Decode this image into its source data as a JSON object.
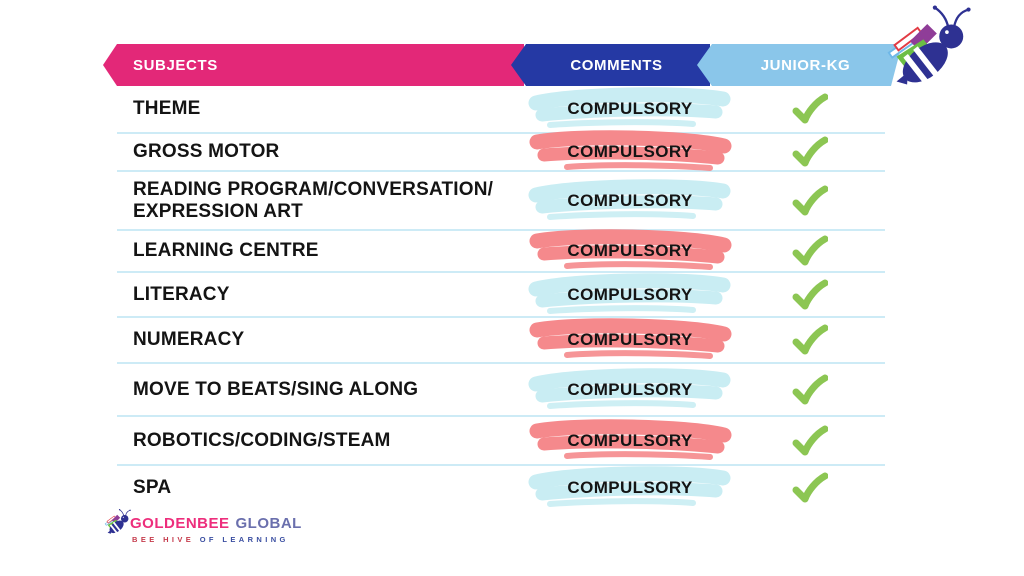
{
  "header": {
    "columns": [
      {
        "label": "SUBJECTS",
        "color": "#E32878"
      },
      {
        "label": "COMMENTS",
        "color": "#2539A4"
      },
      {
        "label": "JUNIOR-KG",
        "color": "#8AC6EA"
      }
    ]
  },
  "rows": [
    {
      "subject": "THEME",
      "comment": "COMPULSORY",
      "stroke": "blue",
      "checked": true
    },
    {
      "subject": "GROSS MOTOR",
      "comment": "COMPULSORY",
      "stroke": "red",
      "checked": true
    },
    {
      "subject": "READING PROGRAM/CONVERSATION/ EXPRESSION ART",
      "comment": "COMPULSORY",
      "stroke": "blue",
      "checked": true
    },
    {
      "subject": "LEARNING CENTRE",
      "comment": "COMPULSORY",
      "stroke": "red",
      "checked": true
    },
    {
      "subject": "LITERACY",
      "comment": "COMPULSORY",
      "stroke": "blue",
      "checked": true
    },
    {
      "subject": "NUMERACY",
      "comment": "COMPULSORY",
      "stroke": "red",
      "checked": true
    },
    {
      "subject": "MOVE TO BEATS/SING ALONG",
      "comment": "COMPULSORY",
      "stroke": "blue",
      "checked": true
    },
    {
      "subject": "ROBOTICS/CODING/STEAM",
      "comment": "COMPULSORY",
      "stroke": "red",
      "checked": true
    },
    {
      "subject": "SPA",
      "comment": "COMPULSORY",
      "stroke": "blue",
      "checked": true
    }
  ],
  "footer": {
    "brand": "GOLDENBEE",
    "brand_suffix": "GLOBAL",
    "tagline_left": "BEE HIVE",
    "tagline_right": "OF LEARNING"
  },
  "icons": {
    "mascot": "bee-with-book-wings-icon",
    "check": "checkmark-icon",
    "highlight": "brush-stroke-highlight"
  },
  "colors": {
    "header_pink": "#E32878",
    "header_dark_blue": "#2539A4",
    "header_light_blue": "#8AC6EA",
    "brush_blue": "#C9EDF3",
    "brush_red": "#F5898C",
    "check_green": "#8CC653",
    "divider": "#CDEBF6",
    "text": "#141414",
    "brand_pink": "#ED2E7C",
    "brand_slate": "#6A6FAD",
    "bee_navy": "#2E3192"
  }
}
